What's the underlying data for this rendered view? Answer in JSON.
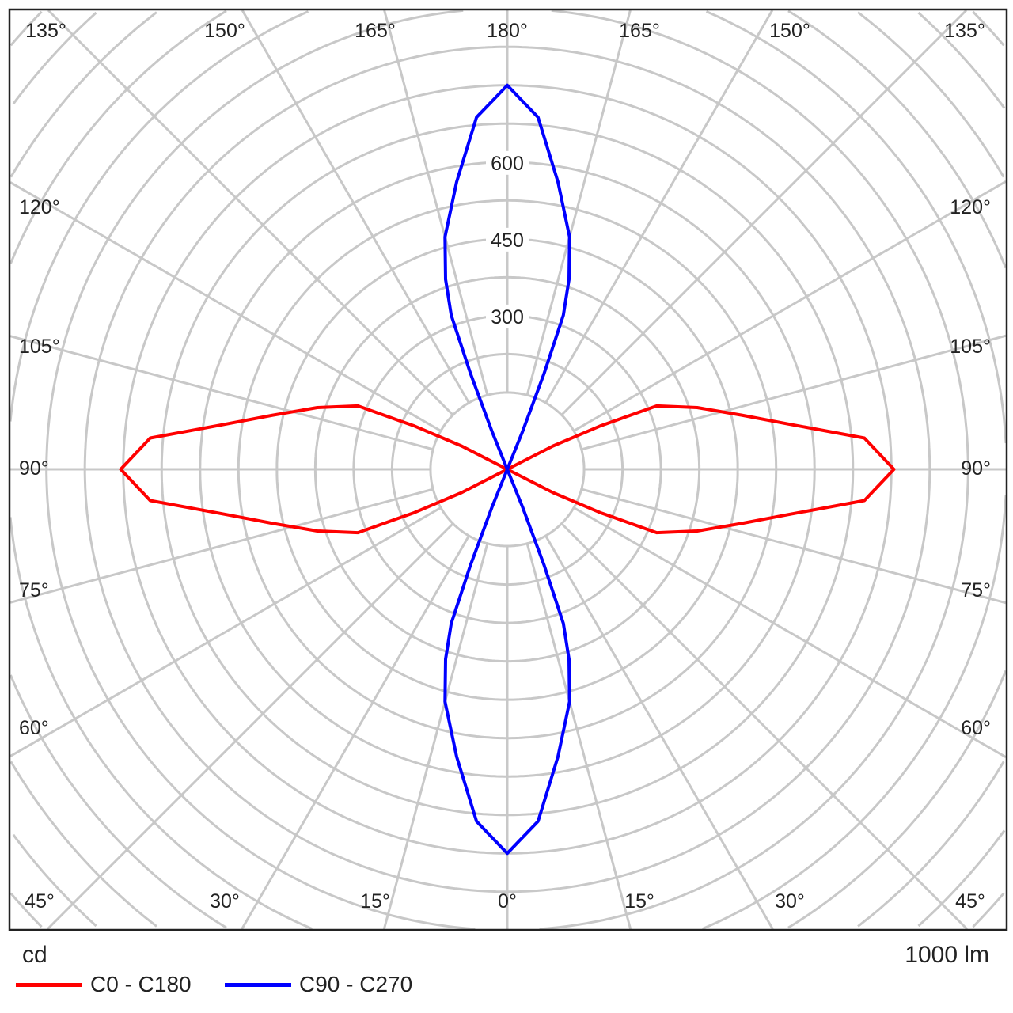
{
  "chart_data": {
    "type": "polar-line",
    "unit_label": "cd",
    "flux_label": "1000 lm",
    "radial_ticks": [
      "300",
      "450",
      "600"
    ],
    "radial_tick_values": [
      300,
      450,
      600
    ],
    "ring_step_cd": 75,
    "angle_step_deg": 15,
    "grid": true,
    "legend_placement": "bottom-left",
    "angle_labels": {
      "top": [
        "135°",
        "150°",
        "165°",
        "180°",
        "165°",
        "150°",
        "135°"
      ],
      "left": [
        "120°",
        "105°",
        "90°",
        "75°",
        "60°"
      ],
      "right": [
        "120°",
        "105°",
        "90°",
        "75°",
        "60°"
      ],
      "bottom": [
        "45°",
        "30°",
        "15°",
        "0°",
        "15°",
        "30°",
        "45°"
      ]
    },
    "series": [
      {
        "name": "C0 - C180",
        "color": "#ff0000",
        "gamma": [
          0,
          62,
          63,
          65,
          67,
          72,
          77,
          81,
          85,
          90,
          95,
          99,
          103,
          108,
          113,
          115,
          117,
          118,
          180
        ],
        "intensity": [
          0,
          0,
          100,
          200,
          317,
          390,
          470,
          560,
          700,
          755,
          700,
          560,
          470,
          390,
          317,
          200,
          100,
          0,
          0
        ]
      },
      {
        "name": "C90 - C270",
        "color": "#0000ff",
        "gamma": [
          0,
          5,
          10,
          15,
          18,
          20,
          21,
          22,
          24,
          156,
          158,
          159,
          160,
          162,
          165,
          170,
          175,
          180
        ],
        "intensity": [
          750,
          690,
          570,
          470,
          390,
          320,
          200,
          80,
          0,
          0,
          80,
          200,
          320,
          390,
          470,
          570,
          690,
          750
        ]
      }
    ]
  }
}
